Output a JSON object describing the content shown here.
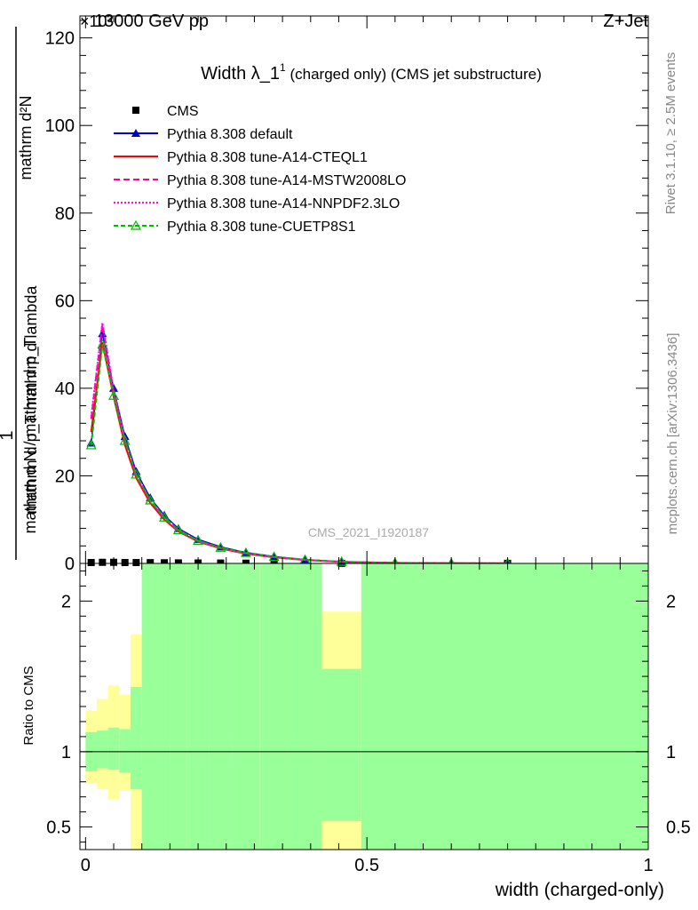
{
  "header": {
    "left": "13000 GeV pp",
    "right": "Z+Jet",
    "exponent": "×10³"
  },
  "side_texts": {
    "rivet": "Rivet 3.1.10, ≥ 2.5M events",
    "mcplots": "mcplots.cern.ch [arXiv:1306.3436]"
  },
  "watermark": "CMS_2021_I1920187",
  "chart_data": [
    {
      "type": "line",
      "panel": "main",
      "title_main": "Width λ_1",
      "title_sup": "1",
      "title_rest": " (charged only) (CMS jet substructure)",
      "ylabel_numerator": "mathrm d²N",
      "ylabel_sub_numerator": "mathrm d p_T mathrm d lambda",
      "ylabel_denominator": "mathrm d N / mathrm d p_T",
      "ylabel_prefix": "1",
      "xlim": [
        -0.01,
        1.0
      ],
      "ylim": [
        0,
        125
      ],
      "yticks": [
        0,
        20,
        40,
        60,
        80,
        100,
        120
      ],
      "ytick_labels": [
        "0",
        "20",
        "40",
        "60",
        "80",
        "100",
        "120"
      ],
      "legend_position": "top-left",
      "series": [
        {
          "name": "CMS",
          "style": "marker-square",
          "color": "#000000",
          "x": [
            0.01,
            0.03,
            0.05,
            0.07,
            0.09,
            0.115,
            0.14,
            0.165,
            0.2,
            0.24,
            0.285,
            0.335,
            0.39,
            0.455,
            0.75
          ],
          "y": [
            0.2,
            0.25,
            0.25,
            0.2,
            0.2,
            0.18,
            0.15,
            0.12,
            0.1,
            0.08,
            0.05,
            0.03,
            0.02,
            0.01,
            0.02
          ]
        },
        {
          "name": "Pythia 8.308 default",
          "style": "line-triangle",
          "color": "#0000cc",
          "x": [
            0.01,
            0.03,
            0.05,
            0.07,
            0.09,
            0.115,
            0.14,
            0.165,
            0.2,
            0.24,
            0.285,
            0.335,
            0.39,
            0.455,
            0.55,
            0.65,
            0.75
          ],
          "y": [
            27.5,
            52.5,
            40.0,
            29.0,
            21.0,
            15.0,
            11.0,
            8.0,
            5.5,
            3.8,
            2.5,
            1.6,
            0.9,
            0.4,
            0.15,
            0.05,
            0.02
          ]
        },
        {
          "name": "Pythia 8.308 tune-A14-CTEQL1",
          "style": "line-solid",
          "color": "#ff0000",
          "x": [
            0.01,
            0.03,
            0.05,
            0.07,
            0.09,
            0.115,
            0.14,
            0.165,
            0.2,
            0.24,
            0.285,
            0.335,
            0.39,
            0.455,
            0.55,
            0.65,
            0.75
          ],
          "y": [
            30.0,
            50.5,
            38.0,
            27.0,
            19.5,
            13.8,
            10.0,
            7.3,
            5.0,
            3.4,
            2.2,
            1.4,
            0.8,
            0.35,
            0.12,
            0.04,
            0.02
          ]
        },
        {
          "name": "Pythia 8.308 tune-A14-MSTW2008LO",
          "style": "line-dashed",
          "color": "#ff0090",
          "x": [
            0.01,
            0.03,
            0.05,
            0.07,
            0.09,
            0.115,
            0.14,
            0.165,
            0.2,
            0.24,
            0.285,
            0.335,
            0.39,
            0.455,
            0.55,
            0.65,
            0.75
          ],
          "y": [
            33.0,
            54.5,
            39.0,
            28.0,
            20.0,
            14.2,
            10.3,
            7.5,
            5.1,
            3.5,
            2.3,
            1.45,
            0.82,
            0.36,
            0.12,
            0.04,
            0.02
          ]
        },
        {
          "name": "Pythia 8.308 tune-A14-NNPDF2.3LO",
          "style": "line-dotted",
          "color": "#ff00ff",
          "x": [
            0.01,
            0.03,
            0.05,
            0.07,
            0.09,
            0.115,
            0.14,
            0.165,
            0.2,
            0.24,
            0.285,
            0.335,
            0.39,
            0.455,
            0.55,
            0.65,
            0.75
          ],
          "y": [
            33.5,
            55.0,
            39.5,
            28.2,
            20.2,
            14.3,
            10.4,
            7.5,
            5.1,
            3.5,
            2.3,
            1.45,
            0.82,
            0.36,
            0.12,
            0.04,
            0.02
          ]
        },
        {
          "name": "Pythia 8.308 tune-CUETP8S1",
          "style": "line-dashed-open-triangle",
          "color": "#00bb00",
          "x": [
            0.01,
            0.03,
            0.05,
            0.07,
            0.09,
            0.115,
            0.14,
            0.165,
            0.2,
            0.24,
            0.285,
            0.335,
            0.39,
            0.455,
            0.55,
            0.65,
            0.75
          ],
          "y": [
            27.0,
            50.0,
            38.3,
            28.0,
            20.3,
            14.4,
            10.5,
            7.6,
            5.2,
            3.6,
            2.4,
            1.5,
            0.85,
            0.38,
            0.13,
            0.04,
            0.02
          ]
        }
      ]
    },
    {
      "type": "area",
      "panel": "ratio",
      "ylabel": "Ratio to CMS",
      "xlabel": "width (charged-only)",
      "xlim": [
        -0.01,
        1.0
      ],
      "ylim": [
        0.35,
        2.25
      ],
      "yticks": [
        0.5,
        1,
        2
      ],
      "ytick_labels": [
        "0.5",
        "1",
        "2"
      ],
      "xticks": [
        0,
        0.5,
        1
      ],
      "xtick_labels": [
        "0",
        "0.5",
        "1"
      ],
      "reference_line": 1,
      "band_colors": {
        "stat": "#99ff99",
        "total": "#ffff99"
      },
      "bins": [
        {
          "lo": 0.0,
          "hi": 0.02,
          "stat_lo": 0.87,
          "stat_hi": 1.13,
          "tot_lo": 0.79,
          "tot_hi": 1.27
        },
        {
          "lo": 0.02,
          "hi": 0.04,
          "stat_lo": 0.89,
          "stat_hi": 1.14,
          "tot_lo": 0.75,
          "tot_hi": 1.35
        },
        {
          "lo": 0.04,
          "hi": 0.06,
          "stat_lo": 0.88,
          "stat_hi": 1.16,
          "tot_lo": 0.68,
          "tot_hi": 1.44
        },
        {
          "lo": 0.06,
          "hi": 0.08,
          "stat_lo": 0.86,
          "stat_hi": 1.15,
          "tot_lo": 0.74,
          "tot_hi": 1.38
        },
        {
          "lo": 0.08,
          "hi": 0.1,
          "stat_lo": 0.75,
          "stat_hi": 1.43,
          "tot_lo": 0.35,
          "tot_hi": 1.78
        },
        {
          "lo": 0.1,
          "hi": 0.125,
          "stat_lo": 0.35,
          "stat_hi": 2.25,
          "tot_lo": 0.35,
          "tot_hi": 2.25
        },
        {
          "lo": 0.125,
          "hi": 0.15,
          "stat_lo": 0.35,
          "stat_hi": 2.25,
          "tot_lo": 0.35,
          "tot_hi": 2.25
        },
        {
          "lo": 0.15,
          "hi": 0.18,
          "stat_lo": 0.35,
          "stat_hi": 2.25,
          "tot_lo": 0.35,
          "tot_hi": 2.25
        },
        {
          "lo": 0.18,
          "hi": 0.22,
          "stat_lo": 0.35,
          "stat_hi": 2.25,
          "tot_lo": 0.35,
          "tot_hi": 2.25
        },
        {
          "lo": 0.22,
          "hi": 0.26,
          "stat_lo": 0.35,
          "stat_hi": 2.25,
          "tot_lo": 0.35,
          "tot_hi": 2.25
        },
        {
          "lo": 0.26,
          "hi": 0.31,
          "stat_lo": 0.35,
          "stat_hi": 2.25,
          "tot_lo": 0.35,
          "tot_hi": 2.25
        },
        {
          "lo": 0.31,
          "hi": 0.36,
          "stat_lo": 0.35,
          "stat_hi": 2.25,
          "tot_lo": 0.35,
          "tot_hi": 2.25
        },
        {
          "lo": 0.36,
          "hi": 0.42,
          "stat_lo": 0.35,
          "stat_hi": 2.25,
          "tot_lo": 0.35,
          "tot_hi": 2.25
        },
        {
          "lo": 0.42,
          "hi": 0.49,
          "stat_lo": 0.54,
          "stat_hi": 1.55,
          "tot_lo": 0.35,
          "tot_hi": 1.93
        },
        {
          "lo": 0.49,
          "hi": 1.0,
          "stat_lo": 0.35,
          "stat_hi": 2.25,
          "tot_lo": 0.35,
          "tot_hi": 2.25
        }
      ]
    }
  ]
}
